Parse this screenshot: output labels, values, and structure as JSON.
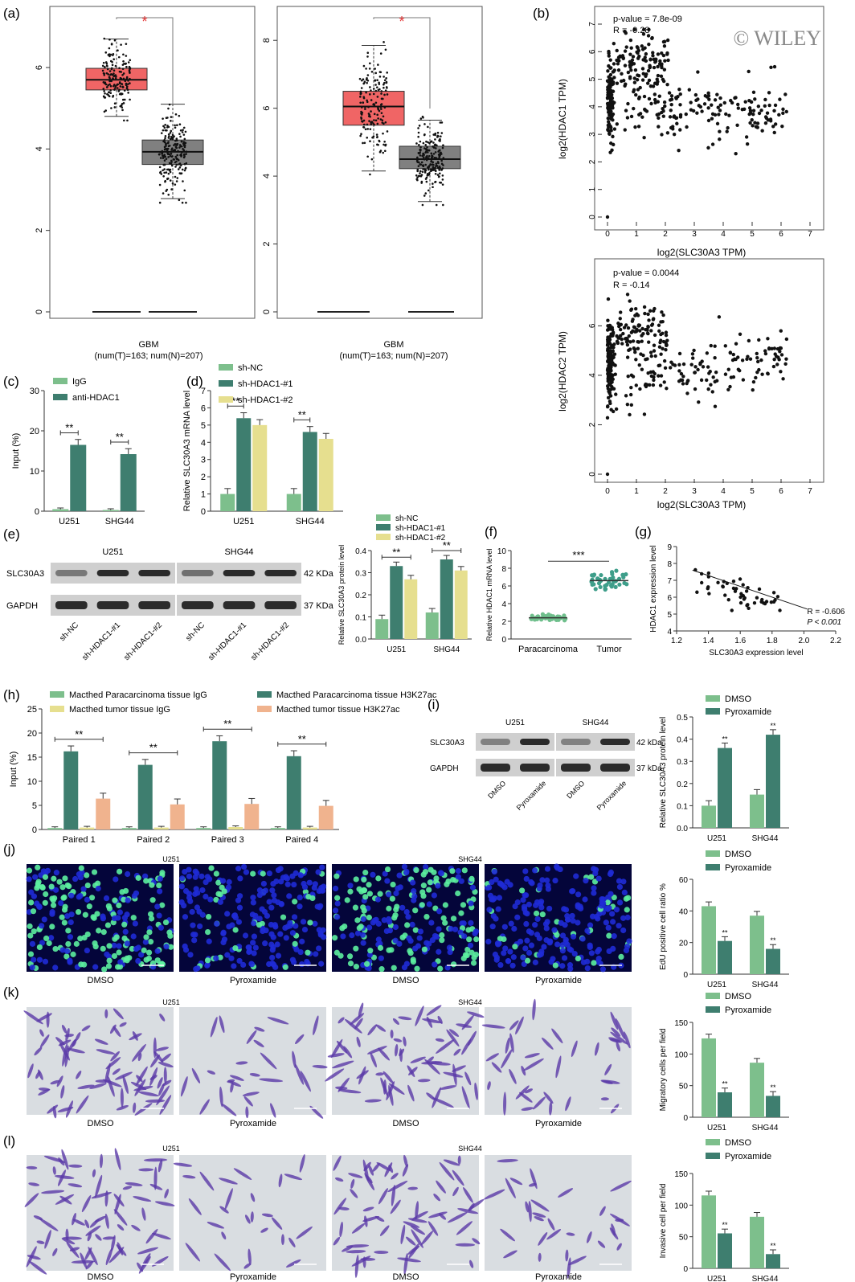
{
  "watermark": "© WILEY",
  "panels": {
    "a": {
      "label": "(a)",
      "plot1": {
        "yticks": [
          "0",
          "2",
          "4",
          "6"
        ],
        "xlabel1": "GBM",
        "xlabel2": "(num(T)=163; num(N)=207)",
        "sig": "*"
      },
      "plot2": {
        "yticks": [
          "0",
          "2",
          "4",
          "6",
          "8"
        ],
        "xlabel1": "GBM",
        "xlabel2": "(num(T)=163; num(N)=207)",
        "sig": "*"
      }
    },
    "b": {
      "label": "(b)",
      "plot1": {
        "pval": "p-value = 7.8e-09",
        "r": "R = -0.28",
        "ylabel": "log2(HDAC1 TPM)",
        "xlabel": "log2(SLC30A3 TPM)",
        "yticks": [
          "0",
          "1",
          "2",
          "3",
          "4",
          "5",
          "6",
          "7"
        ],
        "xticks": [
          "0",
          "1",
          "2",
          "3",
          "4",
          "5",
          "6",
          "7"
        ]
      },
      "plot2": {
        "pval": "p-value = 0.0044",
        "r": "R = -0.14",
        "ylabel": "log2(HDAC2 TPM)",
        "xlabel": "log2(SLC30A3 TPM)",
        "yticks": [
          "0",
          "2",
          "4",
          "6"
        ],
        "xticks": [
          "0",
          "1",
          "2",
          "3",
          "4",
          "5",
          "6",
          "7"
        ]
      }
    },
    "c": {
      "label": "(c)",
      "ylabel": "Input (%)",
      "yticks": [
        "0",
        "10",
        "20",
        "30"
      ],
      "legend": [
        "IgG",
        "anti-HDAC1"
      ],
      "cats": [
        "U251",
        "SHG44"
      ],
      "sig": "**"
    },
    "d": {
      "label": "(d)",
      "ylabel": "Relative SLC30A3 mRNA level",
      "yticks": [
        "0",
        "1",
        "2",
        "3",
        "4",
        "5",
        "6",
        "7"
      ],
      "legend": [
        "sh-NC",
        "sh-HDAC1-#1",
        "sh-HDAC1-#2"
      ],
      "cats": [
        "U251",
        "SHG44"
      ],
      "sig": "**"
    },
    "e": {
      "label": "(e)",
      "blot": {
        "cell1": "U251",
        "cell2": "SHG44",
        "row1": "SLC30A3",
        "row2": "GAPDH",
        "kda1": "42 KDa",
        "kda2": "37 KDa",
        "lanes": [
          "sh-NC",
          "sh-HDAC1-#1",
          "sh-HDAC1-#2",
          "sh-NC",
          "sh-HDAC1-#1",
          "sh-HDAC1-#2"
        ]
      },
      "bar": {
        "ylabel": "Relative SLC30A3 protein level",
        "yticks": [
          "0.0",
          "0.1",
          "0.2",
          "0.3",
          "0.4"
        ],
        "legend": [
          "sh-NC",
          "sh-HDAC1-#1",
          "sh-HDAC1-#2"
        ],
        "cats": [
          "U251",
          "SHG44"
        ],
        "sig": "**"
      }
    },
    "f": {
      "label": "(f)",
      "ylabel": "Relative HDAC1 mRNA level",
      "yticks": [
        "0",
        "2",
        "4",
        "6",
        "8",
        "10"
      ],
      "cats": [
        "Paracarcinoma",
        "Tumor"
      ],
      "sig": "***"
    },
    "g": {
      "label": "(g)",
      "ylabel": "HDAC1 expression level",
      "xlabel": "SLC30A3 expression level",
      "yticks": [
        "4",
        "5",
        "6",
        "7",
        "8",
        "9"
      ],
      "xticks": [
        "1.2",
        "1.4",
        "1.6",
        "1.8",
        "2.0",
        "2.2"
      ],
      "r": "R = -0.606",
      "p": "P < 0.001"
    },
    "h": {
      "label": "(h)",
      "ylabel": "Input (%)",
      "yticks": [
        "0",
        "5",
        "10",
        "15",
        "20",
        "25"
      ],
      "legend": [
        "Macthed Paracarcinoma tissue IgG",
        "Macthed Paracarcinoma tissue H3K27ac",
        "Macthed tumor tissue IgG",
        "Macthed tumor tissue H3K27ac"
      ],
      "cats": [
        "Paired 1",
        "Paired 2",
        "Paired 3",
        "Paired 4"
      ],
      "sig": "**"
    },
    "i": {
      "label": "(i)",
      "blot": {
        "cell1": "U251",
        "cell2": "SHG44",
        "row1": "SLC30A3",
        "row2": "GAPDH",
        "kda1": "42 kDa",
        "kda2": "37 kDa",
        "lanes": [
          "DMSO",
          "Pyroxamide",
          "DMSO",
          "Pyroxamide"
        ]
      },
      "bar": {
        "ylabel": "Relative SLC30A3 protein level",
        "yticks": [
          "0.0",
          "0.1",
          "0.2",
          "0.3",
          "0.4",
          "0.5"
        ],
        "legend": [
          "DMSO",
          "Pyroxamide"
        ],
        "cats": [
          "U251",
          "SHG44"
        ],
        "sig": "**"
      }
    },
    "j": {
      "label": "(j)",
      "cell1": "U251",
      "cell2": "SHG44",
      "captions": [
        "DMSO",
        "Pyroxamide",
        "DMSO",
        "Pyroxamide"
      ],
      "bar": {
        "ylabel": "EdU positive cell ratio  %",
        "yticks": [
          "0",
          "20",
          "40",
          "60"
        ],
        "legend": [
          "DMSO",
          "Pyroxamide"
        ],
        "cats": [
          "U251",
          "SHG44"
        ],
        "sig": "**"
      }
    },
    "k": {
      "label": "(k)",
      "cell1": "U251",
      "cell2": "SHG44",
      "captions": [
        "DMSO",
        "Pyroxamide",
        "DMSO",
        "Pyroxamide"
      ],
      "bar": {
        "ylabel": "Migratory cells per field",
        "yticks": [
          "0",
          "50",
          "100",
          "150"
        ],
        "legend": [
          "DMSO",
          "Pyroxamide"
        ],
        "cats": [
          "U251",
          "SHG44"
        ],
        "sig": "**"
      }
    },
    "l": {
      "label": "(l)",
      "cell1": "U251",
      "cell2": "SHG44",
      "captions": [
        "DMSO",
        "Pyroxamide",
        "DMSO",
        "Pyroxamide"
      ],
      "bar": {
        "ylabel": "Invasive cell per field",
        "yticks": [
          "0",
          "50",
          "100",
          "150"
        ],
        "legend": [
          "DMSO",
          "Pyroxamide"
        ],
        "cats": [
          "U251",
          "SHG44"
        ],
        "sig": "**"
      }
    }
  },
  "colors": {
    "red": "#f06565",
    "gray": "#808080",
    "lightgreen": "#7dbf8c",
    "darkgreen": "#3e7e6f",
    "yellow": "#e6df8f",
    "peach": "#f0b38e",
    "blue": "#1f2bd6",
    "green_nuc": "#5cf0a0",
    "purple": "#5a3aa8"
  },
  "chart_data": [
    {
      "panel": "c",
      "type": "bar",
      "categories": [
        "U251",
        "SHG44"
      ],
      "series": [
        {
          "name": "IgG",
          "values": [
            0.5,
            0.3
          ]
        },
        {
          "name": "anti-HDAC1",
          "values": [
            16.5,
            14.2
          ]
        }
      ],
      "ylim": [
        0,
        30
      ]
    },
    {
      "panel": "d",
      "type": "bar",
      "categories": [
        "U251",
        "SHG44"
      ],
      "series": [
        {
          "name": "sh-NC",
          "values": [
            1.0,
            1.0
          ]
        },
        {
          "name": "sh-HDAC1-#1",
          "values": [
            5.4,
            4.6
          ]
        },
        {
          "name": "sh-HDAC1-#2",
          "values": [
            5.0,
            4.2
          ]
        }
      ],
      "ylim": [
        0,
        7
      ]
    },
    {
      "panel": "e",
      "type": "bar",
      "categories": [
        "U251",
        "SHG44"
      ],
      "series": [
        {
          "name": "sh-NC",
          "values": [
            0.09,
            0.12
          ]
        },
        {
          "name": "sh-HDAC1-#1",
          "values": [
            0.33,
            0.36
          ]
        },
        {
          "name": "sh-HDAC1-#2",
          "values": [
            0.27,
            0.31
          ]
        }
      ],
      "ylim": [
        0,
        0.4
      ]
    },
    {
      "panel": "h",
      "type": "bar",
      "categories": [
        "Paired 1",
        "Paired 2",
        "Paired 3",
        "Paired 4"
      ],
      "series": [
        {
          "name": "Macthed Paracarcinoma tissue IgG",
          "values": [
            0.3,
            0.3,
            0.3,
            0.3
          ]
        },
        {
          "name": "Macthed Paracarcinoma tissue H3K27ac",
          "values": [
            16.2,
            13.4,
            18.3,
            15.2
          ]
        },
        {
          "name": "Macthed tumor tissue IgG",
          "values": [
            0.4,
            0.4,
            0.5,
            0.4
          ]
        },
        {
          "name": "Macthed tumor tissue H3K27ac",
          "values": [
            6.4,
            5.2,
            5.3,
            4.9
          ]
        }
      ],
      "ylim": [
        0,
        25
      ]
    },
    {
      "panel": "i",
      "type": "bar",
      "categories": [
        "U251",
        "SHG44"
      ],
      "series": [
        {
          "name": "DMSO",
          "values": [
            0.1,
            0.15
          ]
        },
        {
          "name": "Pyroxamide",
          "values": [
            0.36,
            0.42
          ]
        }
      ],
      "ylim": [
        0,
        0.5
      ]
    },
    {
      "panel": "j",
      "type": "bar",
      "categories": [
        "U251",
        "SHG44"
      ],
      "series": [
        {
          "name": "DMSO",
          "values": [
            43,
            37
          ]
        },
        {
          "name": "Pyroxamide",
          "values": [
            21,
            16
          ]
        }
      ],
      "ylim": [
        0,
        60
      ]
    },
    {
      "panel": "k",
      "type": "bar",
      "categories": [
        "U251",
        "SHG44"
      ],
      "series": [
        {
          "name": "DMSO",
          "values": [
            133,
            92
          ]
        },
        {
          "name": "Pyroxamide",
          "values": [
            42,
            36
          ]
        }
      ],
      "ylim": [
        0,
        160
      ]
    },
    {
      "panel": "l",
      "type": "bar",
      "categories": [
        "U251",
        "SHG44"
      ],
      "series": [
        {
          "name": "DMSO",
          "values": [
            123,
            87
          ]
        },
        {
          "name": "Pyroxamide",
          "values": [
            59,
            24
          ]
        }
      ],
      "ylim": [
        0,
        160
      ]
    },
    {
      "panel": "a1",
      "type": "box",
      "categories": [
        "T",
        "N"
      ],
      "median": [
        5.7,
        3.93
      ],
      "q1": [
        5.45,
        3.62
      ],
      "q3": [
        5.98,
        4.22
      ],
      "whisker_low": [
        4.8,
        2.78
      ],
      "whisker_high": [
        6.7,
        5.1
      ],
      "ylim": [
        0,
        7.5
      ]
    },
    {
      "panel": "a2",
      "type": "box",
      "categories": [
        "T",
        "N"
      ],
      "median": [
        6.05,
        4.5
      ],
      "q1": [
        5.5,
        4.22
      ],
      "q3": [
        6.5,
        4.88
      ],
      "whisker_low": [
        4.15,
        3.25
      ],
      "whisker_high": [
        7.85,
        5.65
      ],
      "ylim": [
        0,
        9
      ]
    },
    {
      "panel": "f",
      "type": "scatter",
      "categories": [
        "Paracarcinoma",
        "Tumor"
      ],
      "mean": [
        2.4,
        6.6
      ],
      "ylim": [
        0,
        10
      ]
    },
    {
      "panel": "g",
      "type": "scatter",
      "r": -0.606,
      "xlim": [
        1.2,
        2.2
      ],
      "ylim": [
        4,
        9
      ]
    }
  ]
}
